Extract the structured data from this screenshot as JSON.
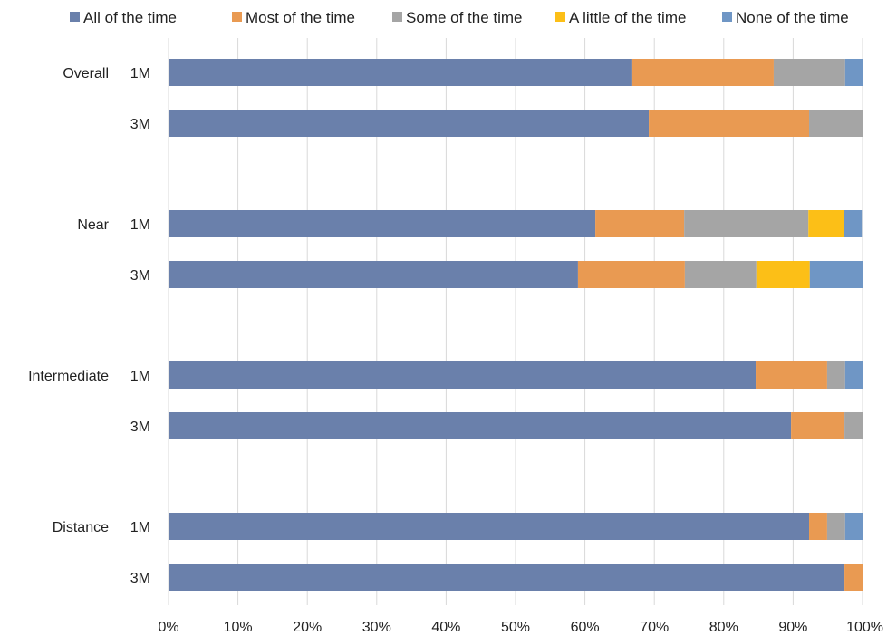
{
  "chart_data": {
    "type": "bar",
    "orientation": "horizontal",
    "stacked": true,
    "percent": true,
    "title": "",
    "xlabel": "",
    "ylabel": "",
    "xlim": [
      0,
      100
    ],
    "x_ticks": [
      "0%",
      "10%",
      "20%",
      "30%",
      "40%",
      "50%",
      "60%",
      "70%",
      "80%",
      "90%",
      "100%"
    ],
    "grid": "vertical",
    "legend_position": "top",
    "groups": [
      {
        "label": "Overall",
        "rows": [
          "1M",
          "3M"
        ]
      },
      {
        "label": "Near",
        "rows": [
          "1M",
          "3M"
        ]
      },
      {
        "label": "Intermediate",
        "rows": [
          "1M",
          "3M"
        ]
      },
      {
        "label": "Distance",
        "rows": [
          "1M",
          "3M"
        ]
      }
    ],
    "series": [
      {
        "name": "All of the time",
        "color": "#6a80ab",
        "values": [
          66.7,
          69.2,
          61.5,
          59.0,
          84.6,
          89.7,
          92.3,
          97.4
        ]
      },
      {
        "name": "Most of the time",
        "color": "#e99a52",
        "values": [
          20.5,
          23.1,
          12.8,
          15.4,
          10.3,
          7.7,
          2.6,
          2.6
        ]
      },
      {
        "name": "Some of the time",
        "color": "#a5a5a5",
        "values": [
          10.3,
          7.7,
          17.9,
          10.3,
          2.6,
          2.6,
          2.6,
          0
        ]
      },
      {
        "name": "A little of the time",
        "color": "#fcbf17",
        "values": [
          0,
          0,
          5.1,
          7.7,
          0,
          0,
          0,
          0
        ]
      },
      {
        "name": "None of the time",
        "color": "#6f96c5",
        "values": [
          2.6,
          0,
          2.6,
          7.7,
          2.6,
          0,
          2.6,
          0
        ]
      }
    ]
  }
}
